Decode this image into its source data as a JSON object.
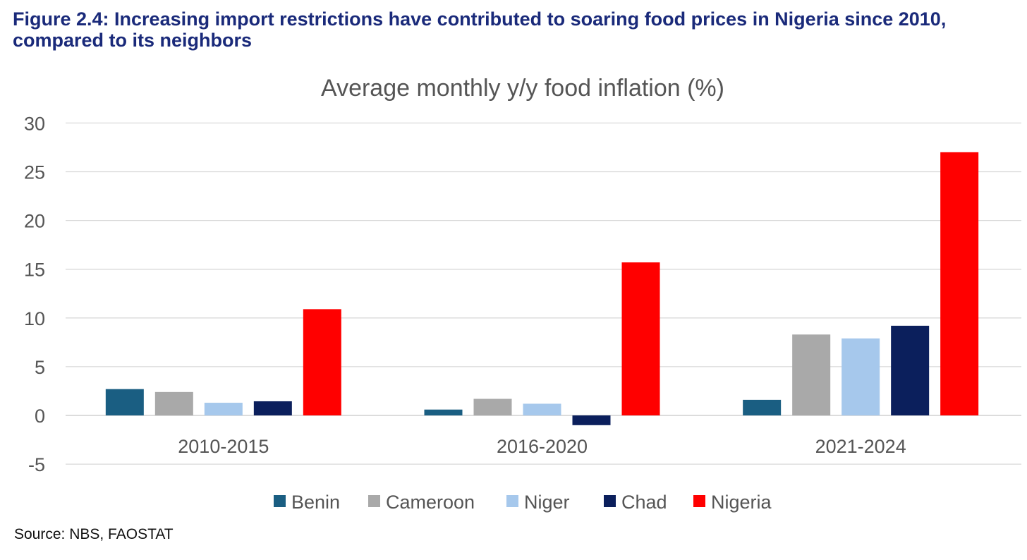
{
  "figure_title": "Figure 2.4: Increasing import restrictions have contributed to soaring food prices in Nigeria since 2010, compared to its neighbors",
  "source": "Source: NBS, FAOSTAT",
  "chart_data": {
    "type": "bar",
    "title": "Average monthly y/y food inflation (%)",
    "xlabel": "",
    "ylabel": "",
    "categories": [
      "2010-2015",
      "2016-2020",
      "2021-2024"
    ],
    "ylim": [
      -5,
      30
    ],
    "yticks": [
      30,
      25,
      20,
      15,
      10,
      5,
      0,
      -5
    ],
    "grid": true,
    "legend_position": "bottom",
    "series": [
      {
        "name": "Benin",
        "color": "#1a5e82",
        "values": [
          2.7,
          0.6,
          1.6
        ]
      },
      {
        "name": "Cameroon",
        "color": "#a9a9a9",
        "values": [
          2.4,
          1.7,
          8.3
        ]
      },
      {
        "name": "Niger",
        "color": "#a6c8ec",
        "values": [
          1.3,
          1.2,
          7.9
        ]
      },
      {
        "name": "Chad",
        "color": "#0b1f5c",
        "values": [
          1.45,
          -1.0,
          9.2
        ]
      },
      {
        "name": "Nigeria",
        "color": "#ff0000",
        "values": [
          10.9,
          15.7,
          27.0
        ]
      }
    ]
  }
}
